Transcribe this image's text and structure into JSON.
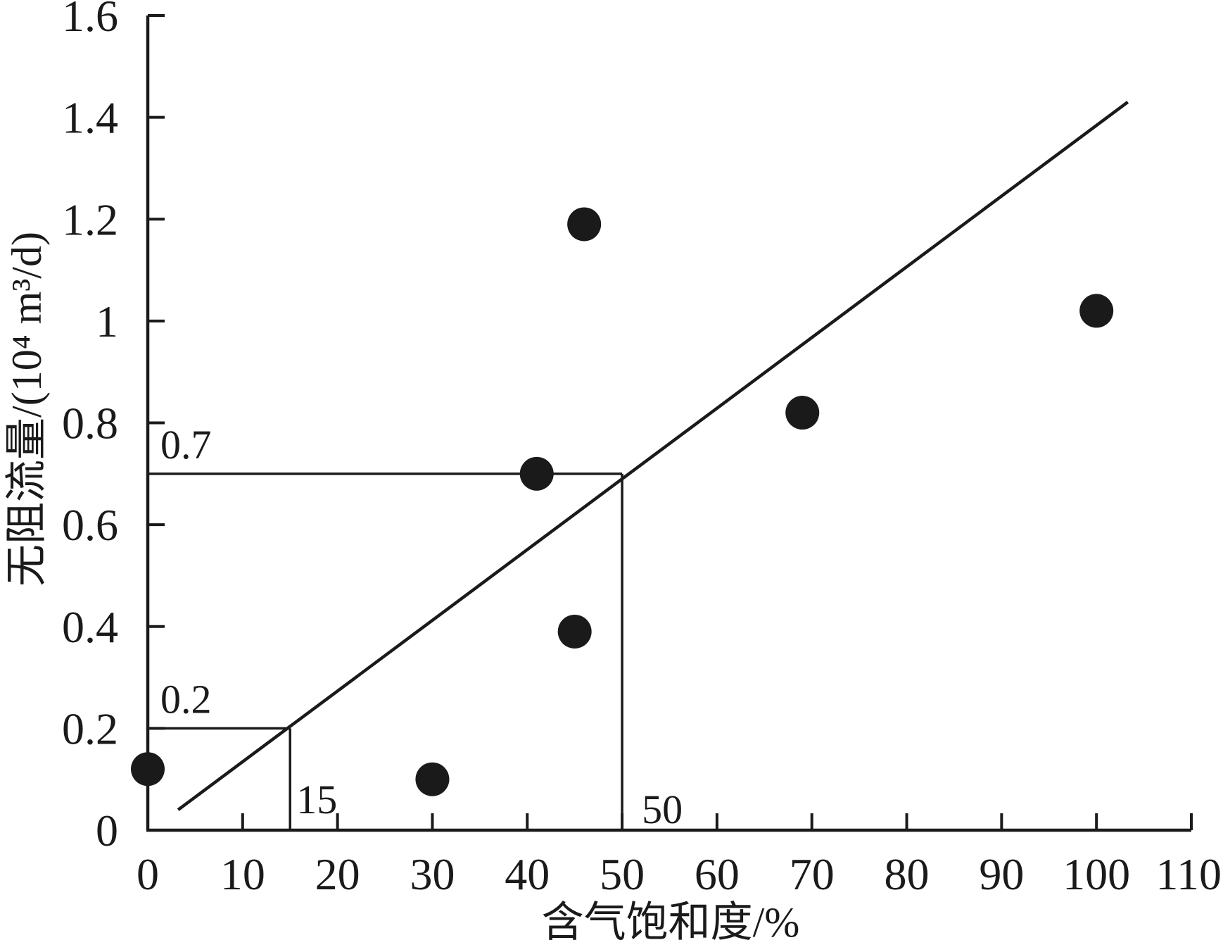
{
  "colors": {
    "ink": "#1a1a1a",
    "background": "#ffffff"
  },
  "chart_data": {
    "type": "scatter",
    "xlabel": "含气饱和度/%",
    "ylabel": "无阻流量/(10⁴ m³/d)",
    "xlim": [
      0,
      110
    ],
    "ylim": [
      0,
      1.6
    ],
    "grid": false,
    "x_ticks": [
      0,
      10,
      20,
      30,
      40,
      50,
      60,
      70,
      80,
      90,
      100,
      110
    ],
    "x_tick_labels": [
      "0",
      "10",
      "20",
      "30",
      "40",
      "50",
      "60",
      "70",
      "80",
      "90",
      "100",
      "110"
    ],
    "y_ticks": [
      0,
      0.2,
      0.4,
      0.6,
      0.8,
      1.0,
      1.2,
      1.4,
      1.6
    ],
    "y_tick_labels": [
      "0",
      "0.2",
      "0.4",
      "0.6",
      "0.8",
      "1",
      "1.2",
      "1.4",
      "1.6"
    ],
    "points": {
      "x": [
        0,
        30,
        41,
        45,
        46,
        69,
        100
      ],
      "y": [
        0.12,
        0.1,
        0.7,
        0.39,
        1.19,
        0.82,
        1.02
      ]
    },
    "trend_line": {
      "x": [
        3.2,
        103.3
      ],
      "y": [
        0.04,
        1.43
      ]
    },
    "reference_lines": [
      {
        "x": 50,
        "y": 0.7,
        "x_label": "50",
        "y_label": "0.7"
      },
      {
        "x": 15,
        "y": 0.2,
        "x_label": "15",
        "y_label": "0.2"
      }
    ]
  }
}
